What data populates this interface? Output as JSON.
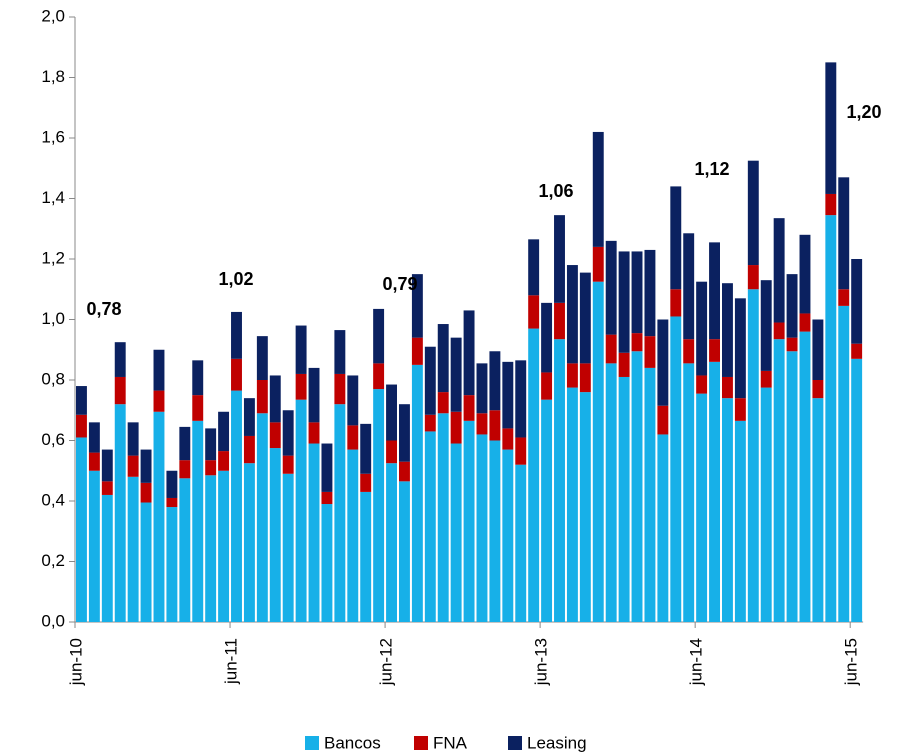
{
  "chart_data": {
    "type": "stacked_bar",
    "categories": [
      "jun-10",
      null,
      null,
      null,
      null,
      null,
      null,
      null,
      null,
      null,
      null,
      null,
      "jun-11",
      null,
      null,
      null,
      null,
      null,
      null,
      null,
      null,
      null,
      null,
      null,
      "jun-12",
      null,
      null,
      null,
      null,
      null,
      null,
      null,
      null,
      null,
      null,
      null,
      "jun-13",
      null,
      null,
      null,
      null,
      null,
      null,
      null,
      null,
      null,
      null,
      null,
      "jun-14",
      null,
      null,
      null,
      null,
      null,
      null,
      null,
      null,
      null,
      null,
      null,
      "jun-15"
    ],
    "series": [
      {
        "name": "Bancos",
        "color": "#17b0e8",
        "values": [
          0.61,
          0.5,
          0.42,
          0.72,
          0.48,
          0.395,
          0.695,
          0.38,
          0.475,
          0.665,
          0.485,
          0.5,
          0.765,
          0.525,
          0.69,
          0.575,
          0.49,
          0.735,
          0.59,
          0.39,
          0.72,
          0.57,
          0.43,
          0.77,
          0.525,
          0.465,
          0.85,
          0.63,
          0.69,
          0.59,
          0.665,
          0.62,
          0.6,
          0.57,
          0.52,
          0.97,
          0.735,
          0.935,
          0.775,
          0.76,
          1.125,
          0.855,
          0.81,
          0.895,
          0.84,
          0.62,
          1.01,
          0.855,
          0.755,
          0.86,
          0.74,
          0.665,
          1.1,
          0.775,
          0.935,
          0.895,
          0.96,
          0.74,
          1.345,
          1.045,
          0.87
        ]
      },
      {
        "name": "FNA",
        "color": "#c00000",
        "values": [
          0.075,
          0.06,
          0.045,
          0.09,
          0.07,
          0.065,
          0.07,
          0.03,
          0.06,
          0.085,
          0.05,
          0.065,
          0.105,
          0.09,
          0.11,
          0.085,
          0.06,
          0.085,
          0.07,
          0.04,
          0.1,
          0.08,
          0.06,
          0.085,
          0.075,
          0.065,
          0.09,
          0.055,
          0.07,
          0.105,
          0.085,
          0.07,
          0.1,
          0.07,
          0.09,
          0.11,
          0.09,
          0.12,
          0.08,
          0.095,
          0.115,
          0.095,
          0.08,
          0.06,
          0.105,
          0.095,
          0.09,
          0.08,
          0.06,
          0.075,
          0.07,
          0.075,
          0.08,
          0.055,
          0.055,
          0.045,
          0.06,
          0.06,
          0.07,
          0.055,
          0.05
        ]
      },
      {
        "name": "Leasing",
        "color": "#0b2160",
        "values": [
          0.095,
          0.1,
          0.105,
          0.115,
          0.11,
          0.11,
          0.135,
          0.09,
          0.11,
          0.115,
          0.105,
          0.13,
          0.155,
          0.125,
          0.145,
          0.155,
          0.15,
          0.16,
          0.18,
          0.16,
          0.145,
          0.165,
          0.165,
          0.18,
          0.185,
          0.19,
          0.21,
          0.225,
          0.225,
          0.245,
          0.28,
          0.165,
          0.195,
          0.22,
          0.255,
          0.185,
          0.23,
          0.29,
          0.325,
          0.3,
          0.38,
          0.31,
          0.335,
          0.27,
          0.285,
          0.285,
          0.34,
          0.35,
          0.31,
          0.32,
          0.31,
          0.33,
          0.345,
          0.3,
          0.345,
          0.21,
          0.26,
          0.2,
          0.435,
          0.37,
          0.28
        ]
      }
    ],
    "annotations": [
      "0,78",
      "1,02",
      "0,79",
      "1,06",
      "1,12",
      "1,20"
    ],
    "ylim": [
      0,
      2
    ],
    "yticks": [
      {
        "value": 0,
        "label": "0,0"
      },
      {
        "value": 0.2,
        "label": "0,2"
      },
      {
        "value": 0.4,
        "label": "0,4"
      },
      {
        "value": 0.6,
        "label": "0,6"
      },
      {
        "value": 0.8,
        "label": "0,8"
      },
      {
        "value": 1,
        "label": "1,0"
      },
      {
        "value": 1.2,
        "label": "1,2"
      },
      {
        "value": 1.4,
        "label": "1,4"
      },
      {
        "value": 1.6,
        "label": "1,6"
      },
      {
        "value": 1.8,
        "label": "1,8"
      },
      {
        "value": 2,
        "label": "2,0"
      }
    ],
    "legend": "bottom"
  }
}
